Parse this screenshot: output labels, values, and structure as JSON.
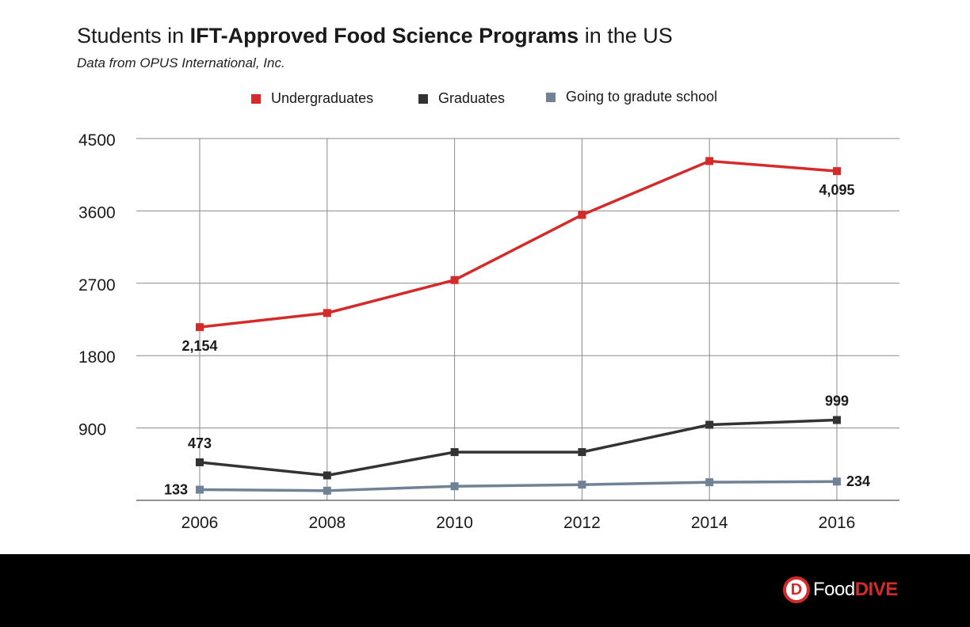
{
  "chart_data": {
    "type": "line",
    "title_prefix": "Students in ",
    "title_bold": "IFT-Approved Food Science Programs",
    "title_suffix": " in the US",
    "subtitle": "Data from OPUS International, Inc.",
    "categories": [
      "2006",
      "2008",
      "2010",
      "2012",
      "2014",
      "2016"
    ],
    "ylim": [
      0,
      4500
    ],
    "yticks": [
      900,
      1800,
      2700,
      3600,
      4500
    ],
    "grid": true,
    "legend_position": "top-center",
    "series": [
      {
        "name": "Undergraduates",
        "color": "#d42a2a",
        "values": [
          2154,
          2330,
          2740,
          3550,
          4220,
          4095
        ],
        "labels": [
          {
            "index": 0,
            "text": "2,154",
            "position": "below"
          },
          {
            "index": 5,
            "text": "4,095",
            "position": "below"
          }
        ]
      },
      {
        "name": "Graduates",
        "color": "#333333",
        "values": [
          473,
          310,
          600,
          600,
          940,
          999
        ],
        "labels": [
          {
            "index": 0,
            "text": "473",
            "position": "above"
          },
          {
            "index": 5,
            "text": "999",
            "position": "above"
          }
        ]
      },
      {
        "name": "Going to gradute school",
        "color": "#6f8296",
        "values": [
          133,
          120,
          175,
          195,
          225,
          234
        ],
        "labels": [
          {
            "index": 0,
            "text": "133",
            "position": "left"
          },
          {
            "index": 5,
            "text": "234",
            "position": "right"
          }
        ]
      }
    ]
  },
  "logo": {
    "letter": "D",
    "word1": "Food",
    "word2": "DIVE"
  }
}
